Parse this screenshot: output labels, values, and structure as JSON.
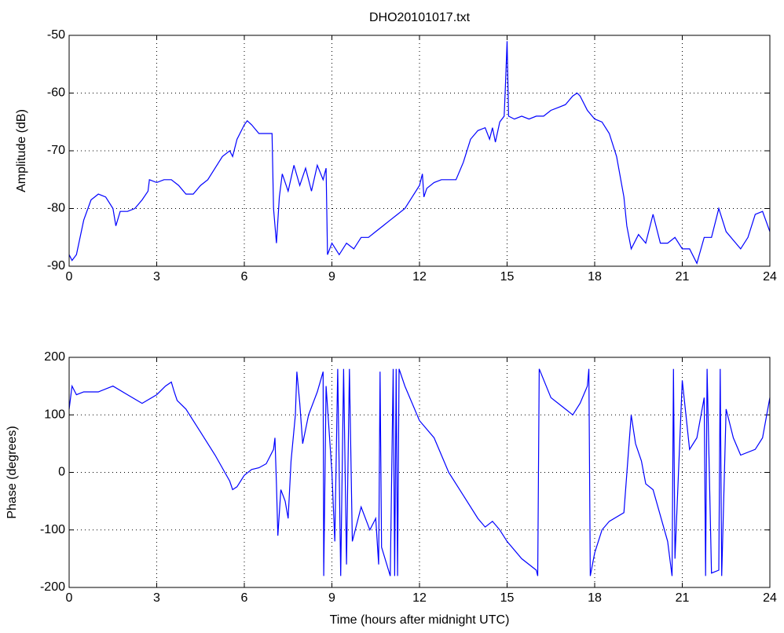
{
  "chart_data": [
    {
      "type": "line",
      "title": "DHO20101017.txt",
      "ylabel": "Amplitude (dB)",
      "xlim": [
        0,
        24
      ],
      "xticks": [
        0,
        3,
        6,
        9,
        12,
        15,
        18,
        21,
        24
      ],
      "ylim": [
        -90,
        -50
      ],
      "yticks": [
        -90,
        -80,
        -70,
        -60,
        -50
      ],
      "grid": true,
      "x": [
        0,
        0.1,
        0.25,
        0.5,
        0.75,
        1,
        1.25,
        1.5,
        1.6,
        1.75,
        2,
        2.25,
        2.5,
        2.7,
        2.75,
        3,
        3.25,
        3.5,
        3.75,
        4,
        4.25,
        4.5,
        4.75,
        5,
        5.25,
        5.5,
        5.6,
        5.75,
        6,
        6.1,
        6.25,
        6.5,
        6.75,
        6.95,
        7,
        7.1,
        7.2,
        7.3,
        7.5,
        7.7,
        7.9,
        8.1,
        8.3,
        8.5,
        8.7,
        8.8,
        8.85,
        9,
        9.25,
        9.5,
        9.75,
        10,
        10.25,
        10.5,
        10.75,
        11,
        11.25,
        11.5,
        11.75,
        12,
        12.1,
        12.15,
        12.25,
        12.5,
        12.75,
        13,
        13.25,
        13.5,
        13.75,
        14,
        14.25,
        14.4,
        14.5,
        14.6,
        14.75,
        14.9,
        14.95,
        15,
        15.05,
        15.25,
        15.5,
        15.75,
        16,
        16.25,
        16.5,
        16.75,
        17,
        17.25,
        17.4,
        17.5,
        17.75,
        18,
        18.25,
        18.5,
        18.75,
        19,
        19.1,
        19.25,
        19.5,
        19.75,
        20,
        20.25,
        20.5,
        20.75,
        21,
        21.25,
        21.5,
        21.75,
        22,
        22.25,
        22.5,
        22.75,
        23,
        23.25,
        23.5,
        23.75,
        24
      ],
      "series": [
        {
          "color": "#0000ff",
          "values": [
            -88,
            -89,
            -88,
            -82,
            -78.5,
            -77.5,
            -78,
            -80,
            -83,
            -80.5,
            -80.5,
            -80,
            -78.5,
            -77,
            -75,
            -75.5,
            -75,
            -75,
            -76,
            -77.5,
            -77.5,
            -76,
            -75,
            -73,
            -71,
            -70,
            -71,
            -68,
            -65.5,
            -64.8,
            -65.5,
            -67,
            -67,
            -67,
            -80,
            -86,
            -78,
            -74,
            -77,
            -72.5,
            -76,
            -73,
            -77,
            -72.5,
            -75,
            -73,
            -88,
            -86,
            -88,
            -86,
            -87,
            -85,
            -85,
            -84,
            -83,
            -82,
            -81,
            -80,
            -78,
            -76,
            -74,
            -78,
            -76.5,
            -75.5,
            -75,
            -75,
            -75,
            -72,
            -68,
            -66.5,
            -66,
            -68,
            -66,
            -68.5,
            -65,
            -64,
            -58,
            -51,
            -64,
            -64.5,
            -64,
            -64.5,
            -64,
            -64,
            -63,
            -62.5,
            -62,
            -60.5,
            -60,
            -60.5,
            -63,
            -64.5,
            -65,
            -67,
            -71,
            -78,
            -83,
            -87,
            -84.5,
            -86,
            -81,
            -86,
            -86,
            -85,
            -87,
            -87,
            -89.5,
            -85,
            -85,
            -80,
            -84,
            -85.5,
            -87,
            -85,
            -81,
            -80.5,
            -84
          ]
        }
      ]
    },
    {
      "type": "line",
      "ylabel": "Phase (degrees)",
      "xlabel": "Time (hours after midnight UTC)",
      "xlim": [
        0,
        24
      ],
      "xticks": [
        0,
        3,
        6,
        9,
        12,
        15,
        18,
        21,
        24
      ],
      "ylim": [
        -200,
        200
      ],
      "yticks": [
        -200,
        -100,
        0,
        100,
        200
      ],
      "grid": true,
      "x": [
        0,
        0.1,
        0.25,
        0.5,
        1,
        1.5,
        2,
        2.5,
        3,
        3.3,
        3.5,
        3.6,
        3.7,
        4,
        4.5,
        5,
        5.5,
        5.6,
        5.75,
        6,
        6.25,
        6.5,
        6.75,
        7,
        7.05,
        7.1,
        7.15,
        7.25,
        7.4,
        7.5,
        7.6,
        7.75,
        7.8,
        7.9,
        8,
        8.2,
        8.5,
        8.7,
        8.72,
        8.8,
        9,
        9.1,
        9.2,
        9.3,
        9.4,
        9.5,
        9.6,
        9.7,
        10,
        10.3,
        10.5,
        10.6,
        10.65,
        10.7,
        11,
        11.1,
        11.15,
        11.2,
        11.25,
        11.3,
        11.5,
        12,
        12.5,
        13,
        13.5,
        14,
        14.25,
        14.5,
        14.75,
        15,
        15.5,
        16,
        16.05,
        16.1,
        16.5,
        17,
        17.25,
        17.5,
        17.75,
        17.8,
        17.85,
        18,
        18.25,
        18.5,
        19,
        19.25,
        19.4,
        19.6,
        19.75,
        20,
        20.5,
        20.6,
        20.65,
        20.7,
        20.75,
        21,
        21.25,
        21.5,
        21.75,
        21.8,
        21.85,
        22,
        22.25,
        22.3,
        22.35,
        22.5,
        22.75,
        23,
        23.5,
        23.75,
        24
      ],
      "series": [
        {
          "color": "#0000ff",
          "values": [
            110,
            150,
            135,
            140,
            140,
            150,
            135,
            120,
            135,
            150,
            157,
            140,
            125,
            110,
            70,
            30,
            -15,
            -30,
            -25,
            -5,
            5,
            8,
            15,
            40,
            60,
            -20,
            -110,
            -30,
            -50,
            -80,
            20,
            100,
            175,
            120,
            50,
            100,
            140,
            175,
            -180,
            150,
            0,
            -120,
            180,
            -180,
            180,
            -160,
            180,
            -120,
            -60,
            -100,
            -80,
            -160,
            175,
            -130,
            -180,
            180,
            -180,
            180,
            -180,
            180,
            150,
            90,
            60,
            0,
            -40,
            -80,
            -95,
            -85,
            -100,
            -120,
            -150,
            -170,
            -180,
            180,
            130,
            110,
            100,
            120,
            150,
            180,
            -180,
            -140,
            -100,
            -85,
            -70,
            100,
            50,
            20,
            -20,
            -30,
            -120,
            -160,
            -180,
            180,
            -150,
            160,
            40,
            60,
            130,
            -180,
            180,
            -175,
            -170,
            180,
            -180,
            110,
            60,
            30,
            40,
            60,
            130
          ]
        }
      ]
    }
  ]
}
